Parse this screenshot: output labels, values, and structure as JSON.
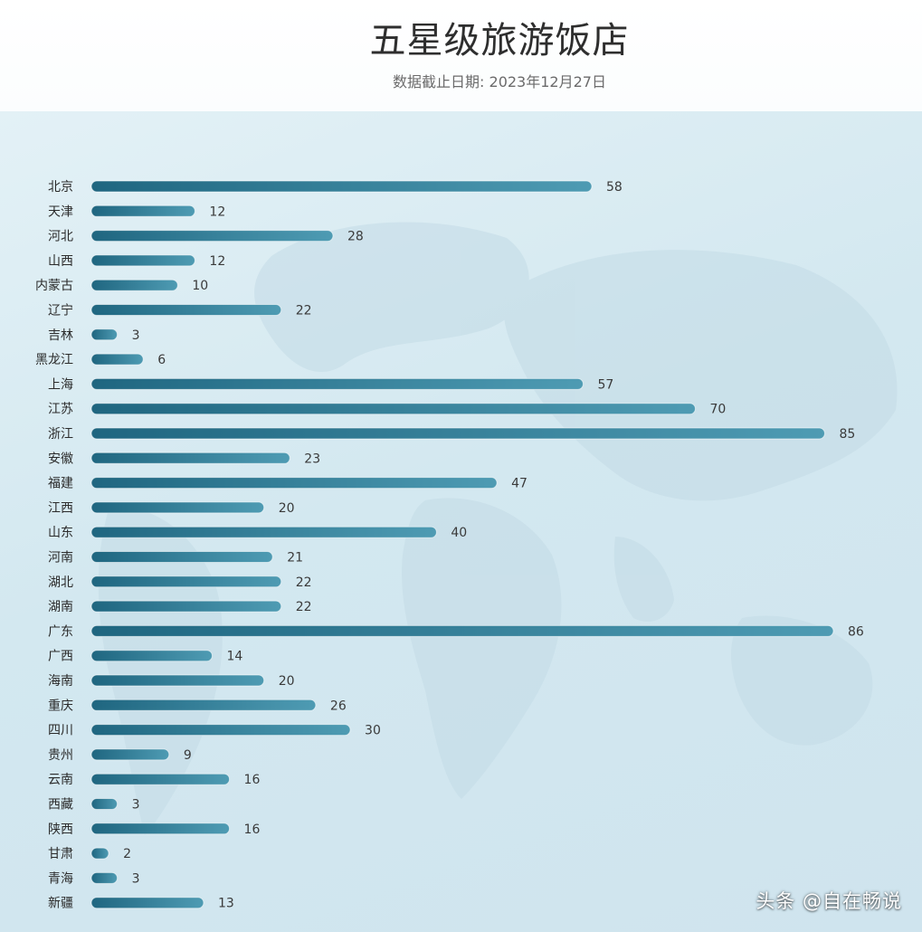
{
  "header": {
    "title": "五星级旅游饭店",
    "subtitle": "数据截止日期: 2023年12月27日"
  },
  "watermark": "头条 @自在畅说",
  "colors": {
    "bar_dark": "#1f6680",
    "bar_light": "#4e9bb3",
    "label": "#2b2b2b",
    "panel_bg": "#d6eaf2"
  },
  "chart_data": {
    "type": "bar",
    "orientation": "horizontal",
    "title": "五星级旅游饭店",
    "subtitle": "数据截止日期: 2023年12月27日",
    "xlabel": "",
    "ylabel": "",
    "xlim": [
      0,
      86
    ],
    "grid": false,
    "legend": "none",
    "categories": [
      "北京",
      "天津",
      "河北",
      "山西",
      "内蒙古",
      "辽宁",
      "吉林",
      "黑龙江",
      "上海",
      "江苏",
      "浙江",
      "安徽",
      "福建",
      "江西",
      "山东",
      "河南",
      "湖北",
      "湖南",
      "广东",
      "广西",
      "海南",
      "重庆",
      "四川",
      "贵州",
      "云南",
      "西藏",
      "陕西",
      "甘肃",
      "青海",
      "新疆"
    ],
    "values": [
      58,
      12,
      28,
      12,
      10,
      22,
      3,
      6,
      57,
      70,
      85,
      23,
      47,
      20,
      40,
      21,
      22,
      22,
      86,
      14,
      20,
      26,
      30,
      9,
      16,
      3,
      16,
      2,
      3,
      13
    ]
  }
}
